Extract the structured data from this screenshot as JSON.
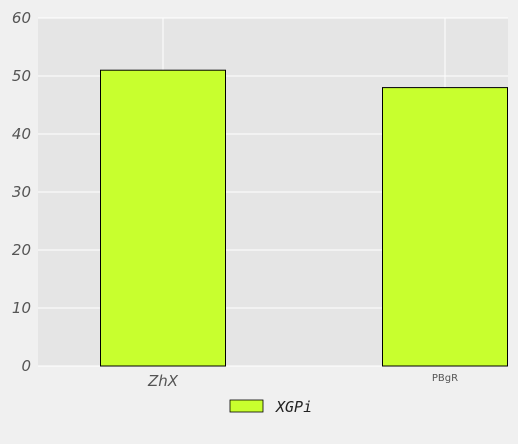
{
  "chart_data": {
    "type": "bar",
    "categories": [
      "ZhX",
      "PBgR"
    ],
    "series": [
      {
        "name": "XGPi",
        "values": [
          51,
          48
        ]
      }
    ],
    "title": "",
    "xlabel": "",
    "ylabel": "",
    "ylim": [
      0,
      60
    ],
    "yticks": [
      0,
      10,
      20,
      30,
      40,
      50,
      60
    ],
    "ytick_labels": [
      "0",
      "10",
      "20",
      "30",
      "40",
      "50",
      "60"
    ],
    "grid": true,
    "legend_position": "bottom-center"
  },
  "colors": {
    "plot_background": "#e5e5e5",
    "page_background": "#f0f0f0",
    "bar_fill": "#c8ff2e",
    "bar_stroke": "#000000",
    "grid": "#ffffff",
    "tick_text": "#555555"
  }
}
